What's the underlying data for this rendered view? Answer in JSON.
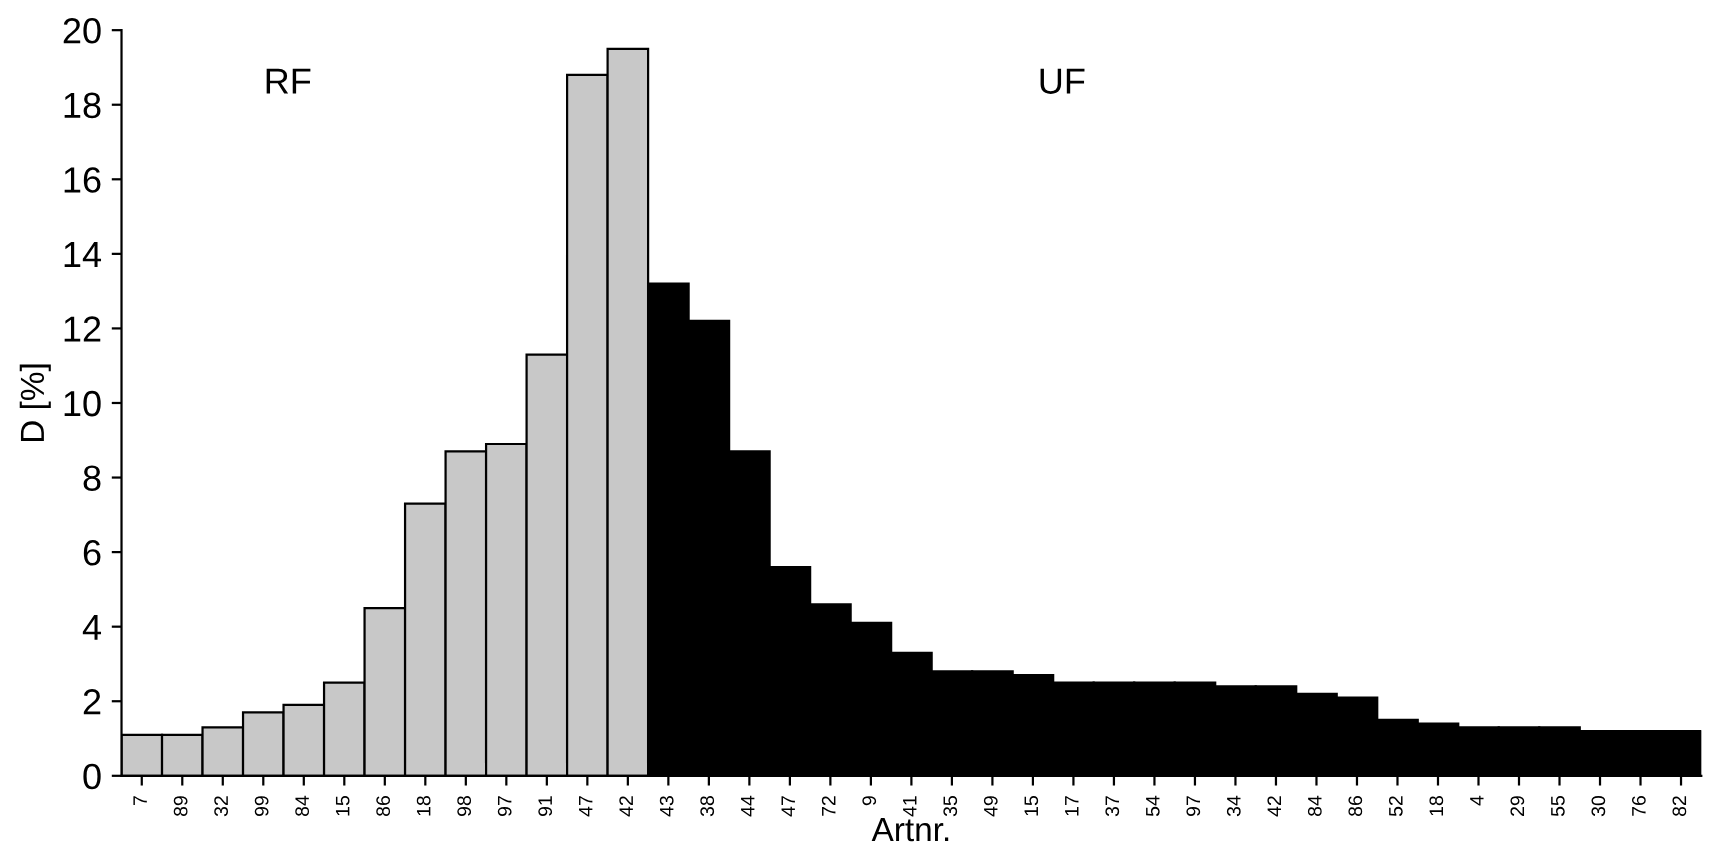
{
  "chart_data": {
    "type": "bar",
    "xlabel": "Artnr.",
    "ylabel": "D [%]",
    "categories": [
      "7",
      "89",
      "32",
      "99",
      "84",
      "15",
      "86",
      "18",
      "98",
      "97",
      "91",
      "47",
      "42",
      "43",
      "38",
      "44",
      "47",
      "72",
      "9",
      "41",
      "35",
      "49",
      "15",
      "17",
      "37",
      "54",
      "97",
      "34",
      "42",
      "84",
      "86",
      "52",
      "18",
      "4",
      "29",
      "55",
      "30",
      "76",
      "82"
    ],
    "values": [
      1.1,
      1.1,
      1.3,
      1.7,
      1.9,
      2.5,
      4.5,
      7.3,
      8.7,
      8.9,
      11.3,
      18.8,
      19.5,
      13.2,
      12.2,
      8.7,
      5.6,
      4.6,
      4.1,
      3.3,
      2.8,
      2.8,
      2.7,
      2.5,
      2.5,
      2.5,
      2.5,
      2.4,
      2.4,
      2.2,
      2.1,
      1.5,
      1.4,
      1.3,
      1.3,
      1.3,
      1.2,
      1.2,
      1.2
    ],
    "colors": [
      "#c8c8c8",
      "#c8c8c8",
      "#c8c8c8",
      "#c8c8c8",
      "#c8c8c8",
      "#c8c8c8",
      "#c8c8c8",
      "#c8c8c8",
      "#c8c8c8",
      "#c8c8c8",
      "#c8c8c8",
      "#c8c8c8",
      "#c8c8c8",
      "#000000",
      "#000000",
      "#000000",
      "#000000",
      "#000000",
      "#000000",
      "#000000",
      "#000000",
      "#000000",
      "#000000",
      "#000000",
      "#000000",
      "#000000",
      "#000000",
      "#000000",
      "#000000",
      "#000000",
      "#000000",
      "#000000",
      "#000000",
      "#000000",
      "#000000",
      "#000000",
      "#000000",
      "#000000",
      "#000000"
    ],
    "annotations": [
      "RF",
      "UF"
    ],
    "ylim": [
      0,
      20
    ],
    "yticks": [
      0,
      2,
      4,
      6,
      8,
      10,
      12,
      14,
      16,
      18,
      20
    ],
    "grid": false
  }
}
